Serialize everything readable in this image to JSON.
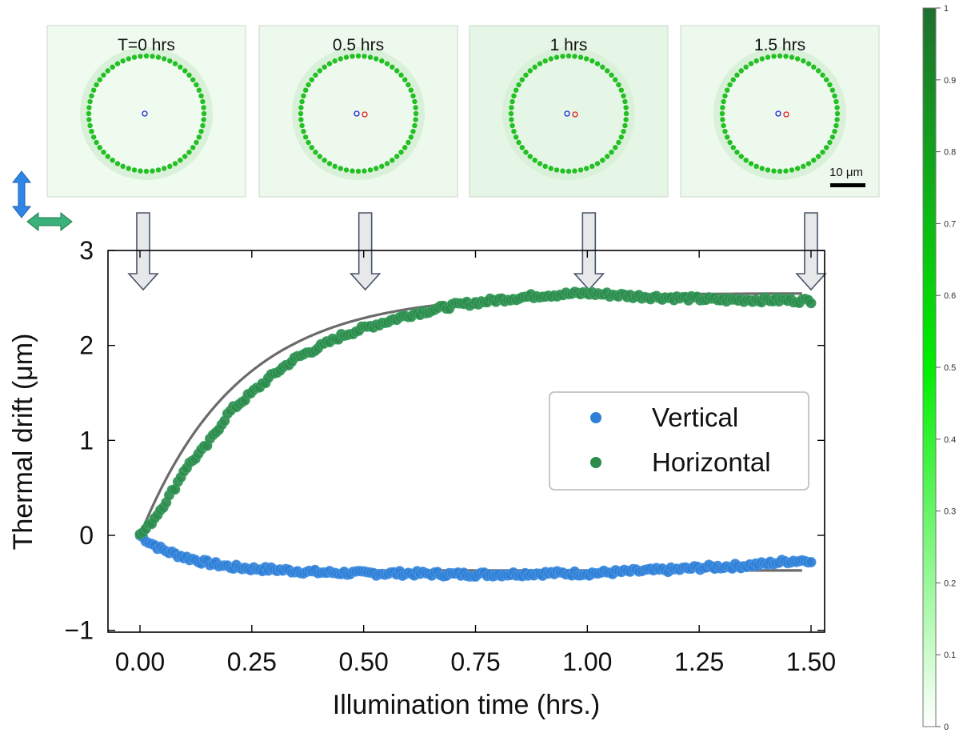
{
  "chart_data": {
    "type": "scatter",
    "xlabel": "Illumination time (hrs.)",
    "ylabel": "Thermal drift (μm)",
    "xlim": [
      -0.08,
      1.58
    ],
    "ylim": [
      -1,
      3
    ],
    "xticks": [
      "0.00",
      "0.25",
      "0.50",
      "0.75",
      "1.00",
      "1.25",
      "1.50"
    ],
    "xtick_values": [
      0,
      0.25,
      0.5,
      0.75,
      1.0,
      1.25,
      1.5
    ],
    "yticks": [
      "−1",
      "0",
      "1",
      "2",
      "3"
    ],
    "ytick_values": [
      -1,
      0,
      1,
      2,
      3
    ],
    "grid": false,
    "legend_position": "center-right",
    "series": [
      {
        "name": "Vertical",
        "color": "#2f7fd6",
        "model": "exponential",
        "amplitude": -0.37,
        "tau_hrs": 0.09,
        "notes_visible": "drift levels near -0.37 then rises to about -0.25 after 1.2 hrs",
        "x": [
          0.0,
          0.02,
          0.05,
          0.08,
          0.1,
          0.15,
          0.2,
          0.25,
          0.3,
          0.4,
          0.5,
          0.6,
          0.7,
          0.8,
          0.9,
          1.0,
          1.1,
          1.2,
          1.25,
          1.3,
          1.35,
          1.4,
          1.45,
          1.5
        ],
        "y": [
          0.0,
          -0.07,
          -0.15,
          -0.2,
          -0.23,
          -0.29,
          -0.33,
          -0.35,
          -0.36,
          -0.39,
          -0.4,
          -0.4,
          -0.41,
          -0.41,
          -0.4,
          -0.4,
          -0.38,
          -0.36,
          -0.34,
          -0.33,
          -0.32,
          -0.3,
          -0.27,
          -0.26
        ]
      },
      {
        "name": "Horizontal",
        "color": "#2e8b4e",
        "model": "exponential",
        "amplitude": 2.55,
        "tau_hrs": 0.22,
        "x": [
          0.0,
          0.02,
          0.05,
          0.08,
          0.1,
          0.15,
          0.2,
          0.25,
          0.3,
          0.35,
          0.4,
          0.45,
          0.5,
          0.55,
          0.6,
          0.7,
          0.8,
          0.9,
          1.0,
          1.1,
          1.2,
          1.3,
          1.4,
          1.5
        ],
        "y": [
          0.0,
          0.1,
          0.3,
          0.52,
          0.7,
          0.95,
          1.3,
          1.5,
          1.7,
          1.87,
          1.98,
          2.1,
          2.18,
          2.25,
          2.32,
          2.42,
          2.48,
          2.53,
          2.55,
          2.52,
          2.5,
          2.48,
          2.48,
          2.47
        ]
      }
    ],
    "fit_color": "#6b6b6b",
    "fit_xmax": 1.48
  },
  "thumbnails": [
    {
      "label": "T=0 hrs",
      "time_hrs": 0.0,
      "red_offset": null
    },
    {
      "label": "0.5 hrs",
      "time_hrs": 0.5,
      "red_offset": 1
    },
    {
      "label": "1 hrs",
      "time_hrs": 1.0,
      "red_offset": 1
    },
    {
      "label": "1.5 hrs",
      "time_hrs": 1.5,
      "red_offset": 1
    }
  ],
  "scale_bar_label": "10 μm",
  "colorbar": {
    "min": 0,
    "max": 1,
    "ticks": [
      "0",
      "0.1",
      "0.2",
      "0.3",
      "0.4",
      "0.5",
      "0.6",
      "0.7",
      "0.8",
      "0.9",
      "1"
    ],
    "tick_values": [
      0,
      0.1,
      0.2,
      0.3,
      0.4,
      0.5,
      0.6,
      0.7,
      0.8,
      0.9,
      1.0
    ],
    "color_low": "#ffffff",
    "color_mid": "#00ee00",
    "color_high": "#1f6f2f"
  },
  "axis_icons": {
    "vertical_color": "#2f86e6",
    "horizontal_color": "#3ab07a"
  }
}
